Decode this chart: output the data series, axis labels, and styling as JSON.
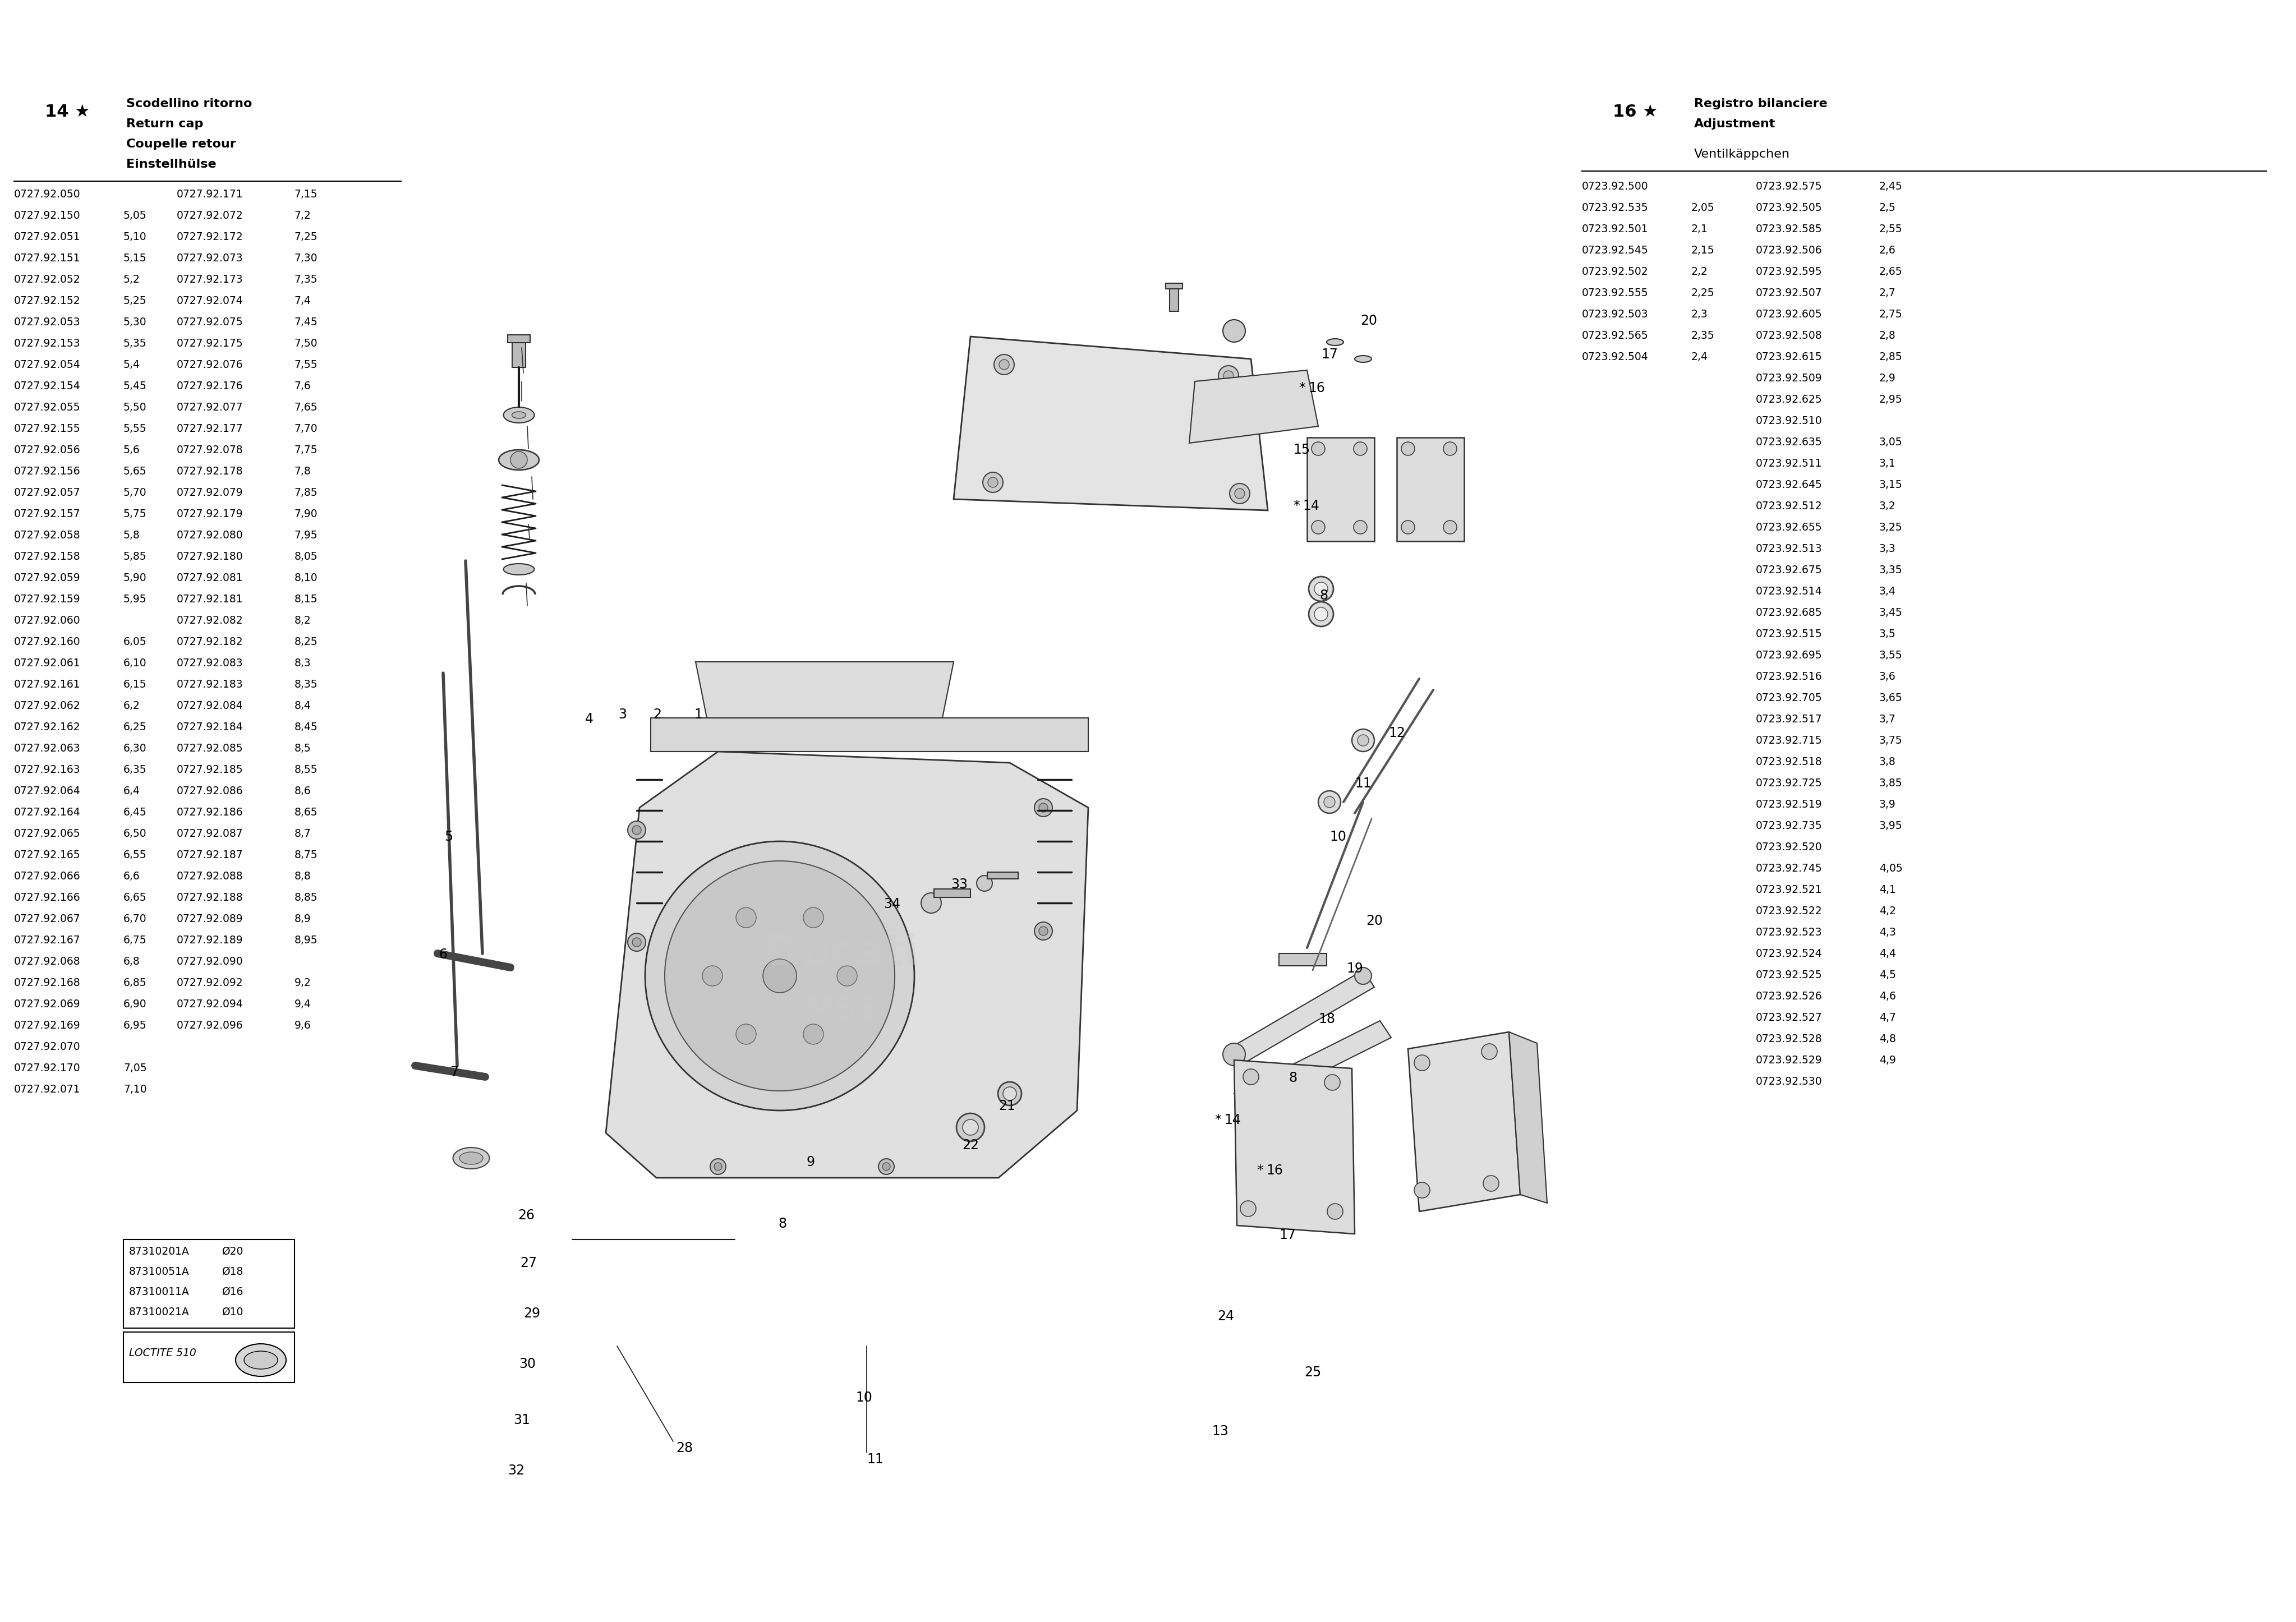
{
  "bg_color": "#ffffff",
  "fig_width": 40.93,
  "fig_height": 28.92,
  "left_header_number": "14",
  "left_header_names": [
    "Scodellino ritorno",
    "Return cap",
    "Coupelle retour",
    "Einstellhülse"
  ],
  "right_header_number": "16",
  "right_header_names": [
    "Registro bilanciere",
    "Adjustment"
  ],
  "right_subheading": "Ventilkäppchen",
  "left_table": [
    [
      "0727.92.050",
      "",
      "0727.92.171",
      "7,15"
    ],
    [
      "0727.92.150",
      "5,05",
      "0727.92.072",
      "7,2"
    ],
    [
      "0727.92.051",
      "5,10",
      "0727.92.172",
      "7,25"
    ],
    [
      "0727.92.151",
      "5,15",
      "0727.92.073",
      "7,30"
    ],
    [
      "0727.92.052",
      "5,2",
      "0727.92.173",
      "7,35"
    ],
    [
      "0727.92.152",
      "5,25",
      "0727.92.074",
      "7,4"
    ],
    [
      "0727.92.053",
      "5,30",
      "0727.92.075",
      "7,45"
    ],
    [
      "0727.92.153",
      "5,35",
      "0727.92.175",
      "7,50"
    ],
    [
      "0727.92.054",
      "5,4",
      "0727.92.076",
      "7,55"
    ],
    [
      "0727.92.154",
      "5,45",
      "0727.92.176",
      "7,6"
    ],
    [
      "0727.92.055",
      "5,50",
      "0727.92.077",
      "7,65"
    ],
    [
      "0727.92.155",
      "5,55",
      "0727.92.177",
      "7,70"
    ],
    [
      "0727.92.056",
      "5,6",
      "0727.92.078",
      "7,75"
    ],
    [
      "0727.92.156",
      "5,65",
      "0727.92.178",
      "7,8"
    ],
    [
      "0727.92.057",
      "5,70",
      "0727.92.079",
      "7,85"
    ],
    [
      "0727.92.157",
      "5,75",
      "0727.92.179",
      "7,90"
    ],
    [
      "0727.92.058",
      "5,8",
      "0727.92.080",
      "7,95"
    ],
    [
      "0727.92.158",
      "5,85",
      "0727.92.180",
      "8,05"
    ],
    [
      "0727.92.059",
      "5,90",
      "0727.92.081",
      "8,10"
    ],
    [
      "0727.92.159",
      "5,95",
      "0727.92.181",
      "8,15"
    ],
    [
      "0727.92.060",
      "",
      "0727.92.082",
      "8,2"
    ],
    [
      "0727.92.160",
      "6,05",
      "0727.92.182",
      "8,25"
    ],
    [
      "0727.92.061",
      "6,10",
      "0727.92.083",
      "8,3"
    ],
    [
      "0727.92.161",
      "6,15",
      "0727.92.183",
      "8,35"
    ],
    [
      "0727.92.062",
      "6,2",
      "0727.92.084",
      "8,4"
    ],
    [
      "0727.92.162",
      "6,25",
      "0727.92.184",
      "8,45"
    ],
    [
      "0727.92.063",
      "6,30",
      "0727.92.085",
      "8,5"
    ],
    [
      "0727.92.163",
      "6,35",
      "0727.92.185",
      "8,55"
    ],
    [
      "0727.92.064",
      "6,4",
      "0727.92.086",
      "8,6"
    ],
    [
      "0727.92.164",
      "6,45",
      "0727.92.186",
      "8,65"
    ],
    [
      "0727.92.065",
      "6,50",
      "0727.92.087",
      "8,7"
    ],
    [
      "0727.92.165",
      "6,55",
      "0727.92.187",
      "8,75"
    ],
    [
      "0727.92.066",
      "6,6",
      "0727.92.088",
      "8,8"
    ],
    [
      "0727.92.166",
      "6,65",
      "0727.92.188",
      "8,85"
    ],
    [
      "0727.92.067",
      "6,70",
      "0727.92.089",
      "8,9"
    ],
    [
      "0727.92.167",
      "6,75",
      "0727.92.189",
      "8,95"
    ],
    [
      "0727.92.068",
      "6,8",
      "0727.92.090",
      ""
    ],
    [
      "0727.92.168",
      "6,85",
      "0727.92.092",
      "9,2"
    ],
    [
      "0727.92.069",
      "6,90",
      "0727.92.094",
      "9,4"
    ],
    [
      "0727.92.169",
      "6,95",
      "0727.92.096",
      "9,6"
    ],
    [
      "0727.92.070",
      "",
      "",
      ""
    ],
    [
      "0727.92.170",
      "7,05",
      "",
      ""
    ],
    [
      "0727.92.071",
      "7,10",
      "",
      ""
    ]
  ],
  "right_table": [
    [
      "0723.92.500",
      "",
      "0723.92.575",
      "2,45"
    ],
    [
      "0723.92.535",
      "2,05",
      "0723.92.505",
      "2,5"
    ],
    [
      "0723.92.501",
      "2,1",
      "0723.92.585",
      "2,55"
    ],
    [
      "0723.92.545",
      "2,15",
      "0723.92.506",
      "2,6"
    ],
    [
      "0723.92.502",
      "2,2",
      "0723.92.595",
      "2,65"
    ],
    [
      "0723.92.555",
      "2,25",
      "0723.92.507",
      "2,7"
    ],
    [
      "0723.92.503",
      "2,3",
      "0723.92.605",
      "2,75"
    ],
    [
      "0723.92.565",
      "2,35",
      "0723.92.508",
      "2,8"
    ],
    [
      "0723.92.504",
      "2,4",
      "0723.92.615",
      "2,85"
    ],
    [
      "",
      "",
      "0723.92.509",
      "2,9"
    ],
    [
      "",
      "",
      "0723.92.625",
      "2,95"
    ],
    [
      "",
      "",
      "0723.92.510",
      ""
    ],
    [
      "",
      "",
      "0723.92.635",
      "3,05"
    ],
    [
      "",
      "",
      "0723.92.511",
      "3,1"
    ],
    [
      "",
      "",
      "0723.92.645",
      "3,15"
    ],
    [
      "",
      "",
      "0723.92.512",
      "3,2"
    ],
    [
      "",
      "",
      "0723.92.655",
      "3,25"
    ],
    [
      "",
      "",
      "0723.92.513",
      "3,3"
    ],
    [
      "",
      "",
      "0723.92.675",
      "3,35"
    ],
    [
      "",
      "",
      "0723.92.514",
      "3,4"
    ],
    [
      "",
      "",
      "0723.92.685",
      "3,45"
    ],
    [
      "",
      "",
      "0723.92.515",
      "3,5"
    ],
    [
      "",
      "",
      "0723.92.695",
      "3,55"
    ],
    [
      "",
      "",
      "0723.92.516",
      "3,6"
    ],
    [
      "",
      "",
      "0723.92.705",
      "3,65"
    ],
    [
      "",
      "",
      "0723.92.517",
      "3,7"
    ],
    [
      "",
      "",
      "0723.92.715",
      "3,75"
    ],
    [
      "",
      "",
      "0723.92.518",
      "3,8"
    ],
    [
      "",
      "",
      "0723.92.725",
      "3,85"
    ],
    [
      "",
      "",
      "0723.92.519",
      "3,9"
    ],
    [
      "",
      "",
      "0723.92.735",
      "3,95"
    ],
    [
      "",
      "",
      "0723.92.520",
      ""
    ],
    [
      "",
      "",
      "0723.92.745",
      "4,05"
    ],
    [
      "",
      "",
      "0723.92.521",
      "4,1"
    ],
    [
      "",
      "",
      "0723.92.522",
      "4,2"
    ],
    [
      "",
      "",
      "0723.92.523",
      "4,3"
    ],
    [
      "",
      "",
      "0723.92.524",
      "4,4"
    ],
    [
      "",
      "",
      "0723.92.525",
      "4,5"
    ],
    [
      "",
      "",
      "0723.92.526",
      "4,6"
    ],
    [
      "",
      "",
      "0723.92.527",
      "4,7"
    ],
    [
      "",
      "",
      "0723.92.528",
      "4,8"
    ],
    [
      "",
      "",
      "0723.92.529",
      "4,9"
    ],
    [
      "",
      "",
      "0723.92.530",
      ""
    ]
  ],
  "bolt_table": [
    [
      "87310201A",
      "Ø20"
    ],
    [
      "87310051A",
      "Ø18"
    ],
    [
      "87310011A",
      "Ø16"
    ],
    [
      "87310021A",
      "Ø10"
    ]
  ],
  "loctite": "LOCTITE 510",
  "part_labels": [
    [
      920,
      2610,
      "32"
    ],
    [
      930,
      2520,
      "31"
    ],
    [
      940,
      2420,
      "30"
    ],
    [
      948,
      2330,
      "29"
    ],
    [
      942,
      2240,
      "27"
    ],
    [
      938,
      2155,
      "26"
    ],
    [
      810,
      1900,
      "7"
    ],
    [
      790,
      1690,
      "6"
    ],
    [
      800,
      1480,
      "5"
    ],
    [
      1050,
      1270,
      "4"
    ],
    [
      1110,
      1262,
      "3"
    ],
    [
      1172,
      1262,
      "2"
    ],
    [
      1245,
      1262,
      "1"
    ],
    [
      1220,
      2570,
      "28"
    ],
    [
      1560,
      2590,
      "11"
    ],
    [
      1540,
      2480,
      "10"
    ],
    [
      1445,
      2060,
      "9"
    ],
    [
      1395,
      2170,
      "8"
    ],
    [
      1730,
      2030,
      "22"
    ],
    [
      1795,
      1960,
      "21"
    ],
    [
      1590,
      1600,
      "34"
    ],
    [
      1710,
      1565,
      "33"
    ],
    [
      2175,
      2540,
      "13"
    ],
    [
      2340,
      2435,
      "25"
    ],
    [
      2185,
      2335,
      "24"
    ],
    [
      2295,
      2190,
      "17"
    ],
    [
      2245,
      2075,
      "*16"
    ],
    [
      2170,
      1985,
      "*14"
    ],
    [
      2305,
      1910,
      "8"
    ],
    [
      2365,
      1805,
      "18"
    ],
    [
      2415,
      1715,
      "19"
    ],
    [
      2450,
      1630,
      "20"
    ],
    [
      2385,
      1480,
      "10"
    ],
    [
      2430,
      1385,
      "11"
    ],
    [
      2490,
      1295,
      "12"
    ],
    [
      2360,
      1050,
      "8"
    ],
    [
      2310,
      890,
      "*14"
    ],
    [
      2320,
      790,
      "15"
    ],
    [
      2320,
      680,
      "*16"
    ],
    [
      2370,
      620,
      "17"
    ],
    [
      2440,
      560,
      "20"
    ]
  ]
}
